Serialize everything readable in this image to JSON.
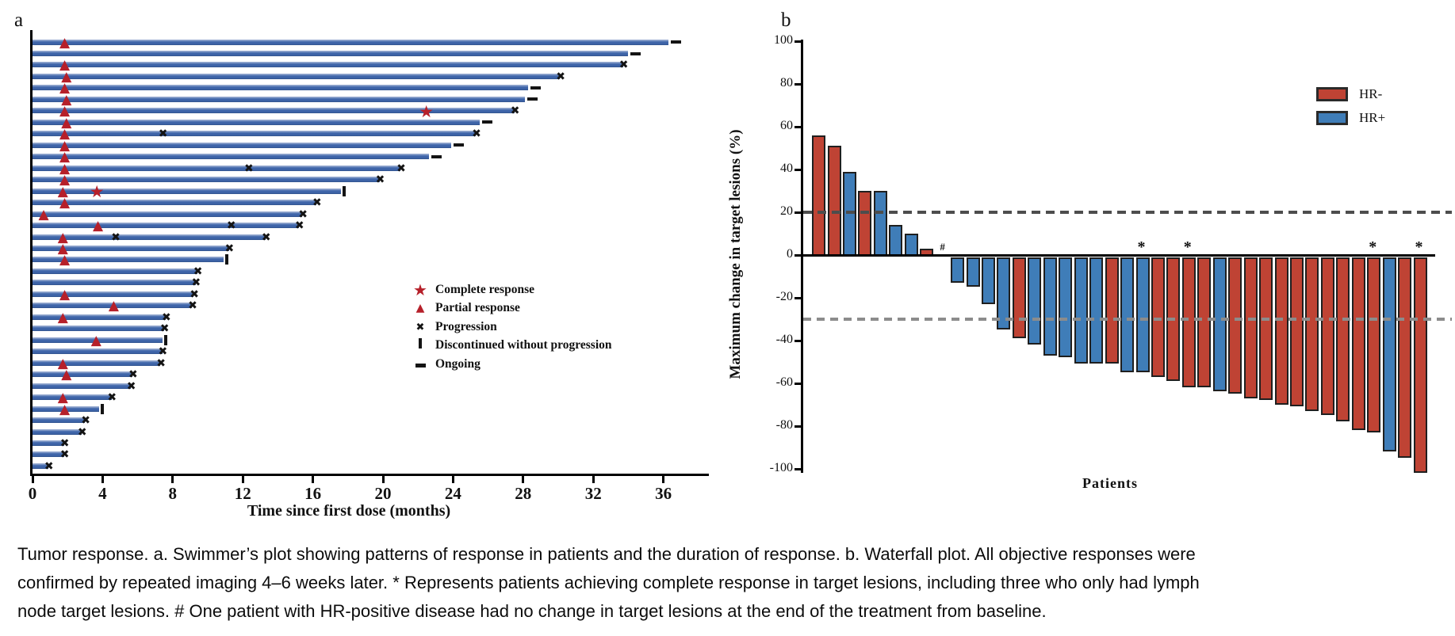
{
  "panel_a": {
    "label": "a",
    "xlabel": "Time since first dose (months)",
    "legend": [
      {
        "symbol": "star",
        "label": "Complete response"
      },
      {
        "symbol": "triangle",
        "label": "Partial response"
      },
      {
        "symbol": "x",
        "label": "Progression"
      },
      {
        "symbol": "vbar",
        "label": "Discontinued without progression"
      },
      {
        "symbol": "dash",
        "label": "Ongoing"
      }
    ]
  },
  "panel_b": {
    "label": "b",
    "ylabel": "Maximum change in target lesions (%)",
    "xlabel": "Patients",
    "legend": [
      {
        "label": "HR-",
        "color": "#bf4334"
      },
      {
        "label": "HR+",
        "color": "#3f7db8"
      }
    ]
  },
  "caption": {
    "line1": "Tumor response. a. Swimmer’s plot showing patterns of response in patients and the duration of response. b. Waterfall plot. All objective responses were",
    "line2": "confirmed by repeated imaging 4–6 weeks later. * Represents patients achieving complete response in target lesions, including three who only had lymph",
    "line3": "node target lesions. # One patient with HR-positive disease had no change in target lesions at the end of the treatment from baseline."
  },
  "colors": {
    "swimmer_bar": "#3c62a6",
    "response_marker_red": "#b6202a",
    "progression_black": "#141414",
    "hr_negative": "#bf4334",
    "hr_positive": "#3f7db8",
    "ref_line_upper": "#4d4d4d",
    "ref_line_lower": "#8c8c8c"
  },
  "chart_data": [
    {
      "type": "swimmer",
      "panel": "a",
      "xlabel": "Time since first dose (months)",
      "x_ticks": [
        0,
        4,
        8,
        12,
        16,
        20,
        24,
        28,
        32,
        36
      ],
      "xlim": [
        0,
        38.5
      ],
      "patients": [
        {
          "duration": 36.3,
          "markers": [
            {
              "type": "partial_response",
              "month": 1.9
            }
          ],
          "end": "ongoing"
        },
        {
          "duration": 34.0,
          "markers": [],
          "end": "ongoing"
        },
        {
          "duration": 33.7,
          "markers": [
            {
              "type": "partial_response",
              "month": 1.9
            }
          ],
          "end": "progression"
        },
        {
          "duration": 30.1,
          "markers": [
            {
              "type": "partial_response",
              "month": 2.0
            }
          ],
          "end": "progression"
        },
        {
          "duration": 28.3,
          "markers": [
            {
              "type": "partial_response",
              "month": 1.9
            }
          ],
          "end": "ongoing"
        },
        {
          "duration": 28.1,
          "markers": [
            {
              "type": "partial_response",
              "month": 2.0
            }
          ],
          "end": "ongoing"
        },
        {
          "duration": 27.5,
          "markers": [
            {
              "type": "partial_response",
              "month": 1.9
            },
            {
              "type": "complete_response",
              "month": 22.5
            }
          ],
          "end": "progression"
        },
        {
          "duration": 25.5,
          "markers": [
            {
              "type": "partial_response",
              "month": 2.0
            }
          ],
          "end": "ongoing"
        },
        {
          "duration": 25.3,
          "markers": [
            {
              "type": "partial_response",
              "month": 1.9
            },
            {
              "type": "progression",
              "month": 7.5
            }
          ],
          "end": "progression"
        },
        {
          "duration": 23.9,
          "markers": [
            {
              "type": "partial_response",
              "month": 1.9
            }
          ],
          "end": "ongoing"
        },
        {
          "duration": 22.6,
          "markers": [
            {
              "type": "partial_response",
              "month": 1.9
            }
          ],
          "end": "ongoing"
        },
        {
          "duration": 21.0,
          "markers": [
            {
              "type": "partial_response",
              "month": 1.9
            },
            {
              "type": "progression",
              "month": 12.4
            }
          ],
          "end": "progression"
        },
        {
          "duration": 19.8,
          "markers": [
            {
              "type": "partial_response",
              "month": 1.9
            }
          ],
          "end": "progression"
        },
        {
          "duration": 17.6,
          "markers": [
            {
              "type": "partial_response",
              "month": 1.8
            },
            {
              "type": "complete_response",
              "month": 3.7
            }
          ],
          "end": "discontinued"
        },
        {
          "duration": 16.2,
          "markers": [
            {
              "type": "partial_response",
              "month": 1.9
            }
          ],
          "end": "progression"
        },
        {
          "duration": 15.4,
          "markers": [
            {
              "type": "partial_response",
              "month": 0.7
            }
          ],
          "end": "progression"
        },
        {
          "duration": 15.2,
          "markers": [
            {
              "type": "partial_response",
              "month": 3.8
            },
            {
              "type": "progression",
              "month": 11.4
            }
          ],
          "end": "progression"
        },
        {
          "duration": 13.3,
          "markers": [
            {
              "type": "partial_response",
              "month": 1.8
            },
            {
              "type": "progression",
              "month": 4.8
            }
          ],
          "end": "progression"
        },
        {
          "duration": 11.2,
          "markers": [
            {
              "type": "partial_response",
              "month": 1.8
            }
          ],
          "end": "progression"
        },
        {
          "duration": 10.9,
          "markers": [
            {
              "type": "partial_response",
              "month": 1.9
            }
          ],
          "end": "discontinued"
        },
        {
          "duration": 9.4,
          "markers": [],
          "end": "progression"
        },
        {
          "duration": 9.3,
          "markers": [],
          "end": "progression"
        },
        {
          "duration": 9.2,
          "markers": [
            {
              "type": "partial_response",
              "month": 1.9
            }
          ],
          "end": "progression"
        },
        {
          "duration": 9.1,
          "markers": [
            {
              "type": "partial_response",
              "month": 4.7
            }
          ],
          "end": "progression"
        },
        {
          "duration": 7.6,
          "markers": [
            {
              "type": "partial_response",
              "month": 1.8
            }
          ],
          "end": "progression"
        },
        {
          "duration": 7.5,
          "markers": [],
          "end": "progression"
        },
        {
          "duration": 7.4,
          "markers": [
            {
              "type": "partial_response",
              "month": 3.7
            }
          ],
          "end": "discontinued"
        },
        {
          "duration": 7.4,
          "markers": [],
          "end": "progression"
        },
        {
          "duration": 7.3,
          "markers": [
            {
              "type": "partial_response",
              "month": 1.8
            }
          ],
          "end": "progression"
        },
        {
          "duration": 5.7,
          "markers": [
            {
              "type": "partial_response",
              "month": 2.0
            }
          ],
          "end": "progression"
        },
        {
          "duration": 5.6,
          "markers": [],
          "end": "progression"
        },
        {
          "duration": 4.5,
          "markers": [
            {
              "type": "partial_response",
              "month": 1.8
            }
          ],
          "end": "progression"
        },
        {
          "duration": 3.8,
          "markers": [
            {
              "type": "partial_response",
              "month": 1.9
            }
          ],
          "end": "discontinued"
        },
        {
          "duration": 3.0,
          "markers": [],
          "end": "progression"
        },
        {
          "duration": 2.8,
          "markers": [],
          "end": "progression"
        },
        {
          "duration": 1.8,
          "markers": [],
          "end": "progression"
        },
        {
          "duration": 1.8,
          "markers": [],
          "end": "progression"
        },
        {
          "duration": 0.9,
          "markers": [],
          "end": "progression"
        }
      ]
    },
    {
      "type": "waterfall",
      "panel": "b",
      "ylabel": "Maximum change in target lesions (%)",
      "xlabel": "Patients",
      "ylim": [
        -100,
        100
      ],
      "yticks": [
        100,
        80,
        60,
        40,
        20,
        0,
        -20,
        -40,
        -60,
        -80,
        -100
      ],
      "reference_lines": [
        20,
        -30
      ],
      "legend": [
        {
          "label": "HR-",
          "color": "#bf4334"
        },
        {
          "label": "HR+",
          "color": "#3f7db8"
        }
      ],
      "bars": [
        {
          "value": 56,
          "group": "HR-",
          "mark": null
        },
        {
          "value": 51,
          "group": "HR-",
          "mark": null
        },
        {
          "value": 39,
          "group": "HR+",
          "mark": null
        },
        {
          "value": 30,
          "group": "HR-",
          "mark": null
        },
        {
          "value": 30,
          "group": "HR+",
          "mark": null
        },
        {
          "value": 14,
          "group": "HR+",
          "mark": null
        },
        {
          "value": 10,
          "group": "HR+",
          "mark": null
        },
        {
          "value": 3,
          "group": "HR-",
          "mark": null
        },
        {
          "value": 0,
          "group": "HR+",
          "mark": "#"
        },
        {
          "value": -11,
          "group": "HR+",
          "mark": null
        },
        {
          "value": -13,
          "group": "HR+",
          "mark": null
        },
        {
          "value": -21,
          "group": "HR+",
          "mark": null
        },
        {
          "value": -33,
          "group": "HR+",
          "mark": null
        },
        {
          "value": -37,
          "group": "HR-",
          "mark": null
        },
        {
          "value": -40,
          "group": "HR+",
          "mark": null
        },
        {
          "value": -45,
          "group": "HR+",
          "mark": null
        },
        {
          "value": -46,
          "group": "HR+",
          "mark": null
        },
        {
          "value": -49,
          "group": "HR+",
          "mark": null
        },
        {
          "value": -49,
          "group": "HR+",
          "mark": null
        },
        {
          "value": -49,
          "group": "HR-",
          "mark": null
        },
        {
          "value": -53,
          "group": "HR+",
          "mark": null
        },
        {
          "value": -53,
          "group": "HR+",
          "mark": "*"
        },
        {
          "value": -55,
          "group": "HR-",
          "mark": null
        },
        {
          "value": -57,
          "group": "HR-",
          "mark": null
        },
        {
          "value": -60,
          "group": "HR-",
          "mark": "*"
        },
        {
          "value": -60,
          "group": "HR-",
          "mark": null
        },
        {
          "value": -62,
          "group": "HR+",
          "mark": null
        },
        {
          "value": -63,
          "group": "HR-",
          "mark": null
        },
        {
          "value": -65,
          "group": "HR-",
          "mark": null
        },
        {
          "value": -66,
          "group": "HR-",
          "mark": null
        },
        {
          "value": -68,
          "group": "HR-",
          "mark": null
        },
        {
          "value": -69,
          "group": "HR-",
          "mark": null
        },
        {
          "value": -71,
          "group": "HR-",
          "mark": null
        },
        {
          "value": -73,
          "group": "HR-",
          "mark": null
        },
        {
          "value": -76,
          "group": "HR-",
          "mark": null
        },
        {
          "value": -80,
          "group": "HR-",
          "mark": null
        },
        {
          "value": -81,
          "group": "HR-",
          "mark": "*"
        },
        {
          "value": -90,
          "group": "HR+",
          "mark": null
        },
        {
          "value": -93,
          "group": "HR-",
          "mark": null
        },
        {
          "value": -100,
          "group": "HR-",
          "mark": "*"
        }
      ]
    }
  ]
}
